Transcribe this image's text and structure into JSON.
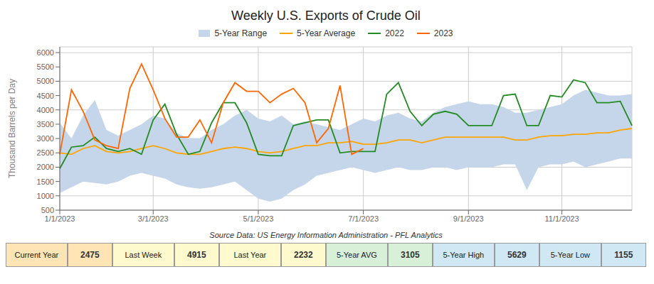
{
  "chart_data": {
    "type": "line",
    "title": "Weekly U.S. Exports of Crude Oil",
    "ylabel": "Thousand Barrels per Day",
    "source": "Source Data: US Energy Information Administration - PFL Analytics",
    "categories": [
      "1/1/2023",
      null,
      null,
      null,
      null,
      null,
      null,
      null,
      "3/1/2023",
      null,
      null,
      null,
      null,
      null,
      null,
      null,
      null,
      "5/1/2023",
      null,
      null,
      null,
      null,
      null,
      null,
      null,
      null,
      "7/1/2023",
      null,
      null,
      null,
      null,
      null,
      null,
      null,
      null,
      "9/1/2023",
      null,
      null,
      null,
      null,
      null,
      null,
      null,
      "11/1/2023",
      null,
      null,
      null,
      null,
      null,
      null
    ],
    "series": [
      {
        "name": "5-Year Range",
        "type": "range",
        "color": "#c5d5ea",
        "low": [
          1100,
          1300,
          1500,
          1450,
          1400,
          1500,
          1700,
          1800,
          1700,
          1600,
          1400,
          1300,
          1250,
          1300,
          1400,
          1500,
          1200,
          900,
          800,
          900,
          1200,
          1400,
          1700,
          1800,
          1900,
          2000,
          1900,
          1800,
          1900,
          2000,
          1900,
          1900,
          2000,
          2000,
          1900,
          2000,
          2000,
          2000,
          2100,
          2100,
          1200,
          2000,
          2100,
          2100,
          2200,
          2000,
          2100,
          2200,
          2300,
          2300
        ],
        "high": [
          3550,
          3000,
          3800,
          4350,
          3300,
          3100,
          3300,
          3500,
          3800,
          3700,
          3200,
          3000,
          3000,
          3300,
          3500,
          3800,
          4000,
          3700,
          3600,
          3800,
          3500,
          3600,
          3500,
          3400,
          3300,
          3500,
          3700,
          3600,
          3800,
          3900,
          3700,
          3600,
          3900,
          4100,
          4200,
          4300,
          4200,
          4200,
          4100,
          3900,
          3900,
          4000,
          4100,
          4200,
          4500,
          4700,
          4600,
          4500,
          4500,
          4550
        ]
      },
      {
        "name": "5-Year Average",
        "type": "line",
        "color": "#FFA500",
        "values": [
          2500,
          2450,
          2650,
          2750,
          2550,
          2500,
          2550,
          2650,
          2750,
          2650,
          2500,
          2450,
          2450,
          2550,
          2650,
          2700,
          2650,
          2550,
          2500,
          2550,
          2650,
          2750,
          2750,
          2850,
          2850,
          2900,
          2800,
          2800,
          2850,
          2950,
          2950,
          2850,
          2950,
          3050,
          3050,
          3050,
          3050,
          3050,
          3050,
          2950,
          2950,
          3050,
          3100,
          3100,
          3150,
          3150,
          3200,
          3200,
          3300,
          3350
        ]
      },
      {
        "name": "2022",
        "type": "line",
        "color": "#228B22",
        "values": [
          1950,
          2700,
          2750,
          3050,
          2650,
          2550,
          2650,
          2450,
          3650,
          4200,
          3150,
          2450,
          2550,
          3550,
          4250,
          4250,
          3550,
          2450,
          2400,
          2400,
          3450,
          3550,
          3650,
          3650,
          2500,
          2550,
          2550,
          2550,
          4550,
          4950,
          3950,
          3450,
          3850,
          3950,
          3850,
          3450,
          3450,
          3450,
          4500,
          4550,
          3450,
          3450,
          4500,
          4450,
          5050,
          4950,
          4250,
          4250,
          4300,
          3450
        ]
      },
      {
        "name": "2023",
        "type": "line",
        "color": "#FF6600",
        "values": [
          2450,
          4700,
          3950,
          2950,
          2750,
          2650,
          4750,
          5600,
          4700,
          3700,
          3050,
          3050,
          3650,
          2850,
          4250,
          4950,
          4650,
          4650,
          4250,
          4550,
          4750,
          4250,
          2850,
          3350,
          4850,
          2450,
          2650,
          null,
          null,
          null,
          null,
          null,
          null,
          null,
          null,
          null,
          null,
          null,
          null,
          null,
          null,
          null,
          null,
          null,
          null,
          null,
          null,
          null,
          null,
          null
        ]
      }
    ],
    "ylim": [
      500,
      6200
    ],
    "yticks": [
      500,
      1000,
      1500,
      2000,
      2500,
      3000,
      3500,
      4000,
      4500,
      5000,
      5500,
      6000
    ],
    "grid": true,
    "legend": "top",
    "stats": [
      {
        "label": "Current Year",
        "value": 2475
      },
      {
        "label": "Last Week",
        "value": 4915
      },
      {
        "label": "Last Year",
        "value": 2232
      },
      {
        "label": "5-Year AVG",
        "value": 3105
      },
      {
        "label": "5-Year High",
        "value": 5629
      },
      {
        "label": "5-Year Low",
        "value": 1155
      }
    ]
  }
}
